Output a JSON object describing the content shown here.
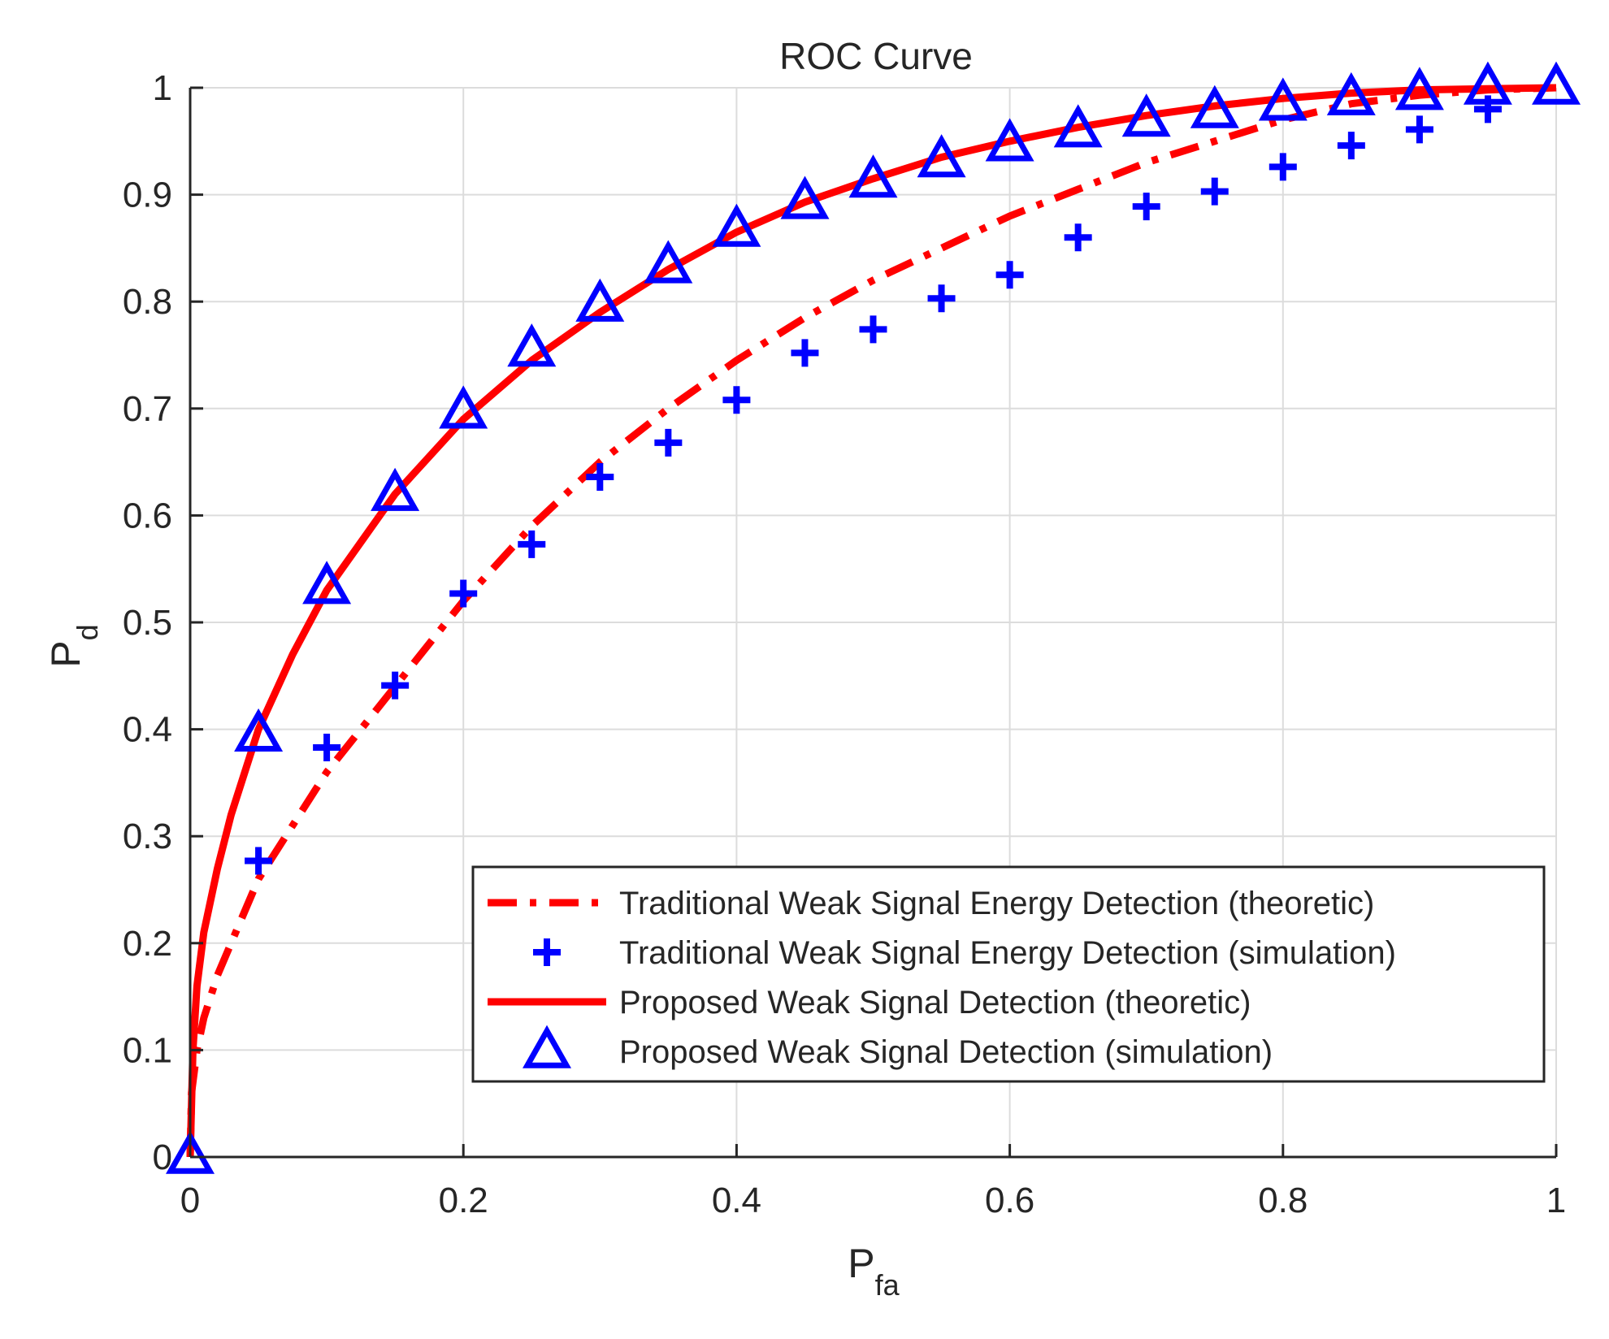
{
  "chart_data": {
    "type": "line",
    "title": "ROC Curve",
    "xlabel": {
      "main": "P",
      "sub": "fa"
    },
    "ylabel": {
      "main": "P",
      "sub": "d"
    },
    "xlim": [
      0,
      1
    ],
    "ylim": [
      0,
      1
    ],
    "xticks": [
      0,
      0.2,
      0.4,
      0.6,
      0.8,
      1
    ],
    "xtick_labels": [
      "0",
      "0.2",
      "0.4",
      "0.6",
      "0.8",
      "1"
    ],
    "yticks": [
      0,
      0.1,
      0.2,
      0.3,
      0.4,
      0.5,
      0.6,
      0.7,
      0.8,
      0.9,
      1
    ],
    "ytick_labels": [
      "0",
      "0.1",
      "0.2",
      "0.3",
      "0.4",
      "0.5",
      "0.6",
      "0.7",
      "0.8",
      "0.9",
      "1"
    ],
    "grid": true,
    "legend_position": "bottom-right",
    "series": [
      {
        "name": "Traditional Weak Signal Energy Detection (theoretic)",
        "style": "dashdot-line",
        "color": "#ff0000",
        "x": [
          0,
          0.001,
          0.005,
          0.01,
          0.02,
          0.03,
          0.05,
          0.075,
          0.1,
          0.15,
          0.2,
          0.25,
          0.3,
          0.35,
          0.4,
          0.45,
          0.5,
          0.55,
          0.6,
          0.65,
          0.7,
          0.75,
          0.8,
          0.85,
          0.9,
          0.95,
          1
        ],
        "y": [
          0,
          0.06,
          0.1,
          0.13,
          0.17,
          0.2,
          0.26,
          0.31,
          0.36,
          0.44,
          0.52,
          0.59,
          0.65,
          0.7,
          0.745,
          0.785,
          0.82,
          0.85,
          0.88,
          0.905,
          0.93,
          0.95,
          0.97,
          0.985,
          0.993,
          0.998,
          1.0
        ]
      },
      {
        "name": "Traditional Weak Signal Energy Detection (simulation)",
        "style": "plus-marker",
        "color": "#0000ff",
        "x": [
          0.05,
          0.1,
          0.15,
          0.2,
          0.25,
          0.3,
          0.35,
          0.4,
          0.45,
          0.5,
          0.55,
          0.6,
          0.65,
          0.7,
          0.75,
          0.8,
          0.85,
          0.9,
          0.95
        ],
        "y": [
          0.277,
          0.383,
          0.441,
          0.527,
          0.573,
          0.636,
          0.668,
          0.708,
          0.752,
          0.774,
          0.803,
          0.825,
          0.86,
          0.889,
          0.903,
          0.926,
          0.946,
          0.961,
          0.98
        ]
      },
      {
        "name": "Proposed Weak Signal Detection (theoretic)",
        "style": "solid-line",
        "color": "#ff0000",
        "x": [
          0,
          0.002,
          0.005,
          0.01,
          0.02,
          0.03,
          0.05,
          0.075,
          0.1,
          0.15,
          0.2,
          0.25,
          0.3,
          0.35,
          0.4,
          0.45,
          0.5,
          0.55,
          0.6,
          0.65,
          0.7,
          0.75,
          0.8,
          0.85,
          0.9,
          0.95,
          1
        ],
        "y": [
          0,
          0.1,
          0.16,
          0.21,
          0.27,
          0.32,
          0.4,
          0.47,
          0.53,
          0.62,
          0.69,
          0.745,
          0.79,
          0.83,
          0.865,
          0.893,
          0.915,
          0.935,
          0.95,
          0.963,
          0.974,
          0.983,
          0.99,
          0.995,
          0.998,
          0.999,
          1.0
        ]
      },
      {
        "name": "Proposed Weak Signal Detection (simulation)",
        "style": "triangle-marker",
        "color": "#0000ff",
        "x": [
          0,
          0.05,
          0.1,
          0.15,
          0.2,
          0.25,
          0.3,
          0.35,
          0.4,
          0.45,
          0.5,
          0.55,
          0.6,
          0.65,
          0.7,
          0.75,
          0.8,
          0.85,
          0.9,
          0.95,
          1
        ],
        "y": [
          0,
          0.395,
          0.533,
          0.62,
          0.697,
          0.755,
          0.797,
          0.833,
          0.867,
          0.893,
          0.913,
          0.932,
          0.947,
          0.96,
          0.97,
          0.978,
          0.985,
          0.99,
          0.995,
          1.0,
          1.0
        ]
      }
    ]
  }
}
